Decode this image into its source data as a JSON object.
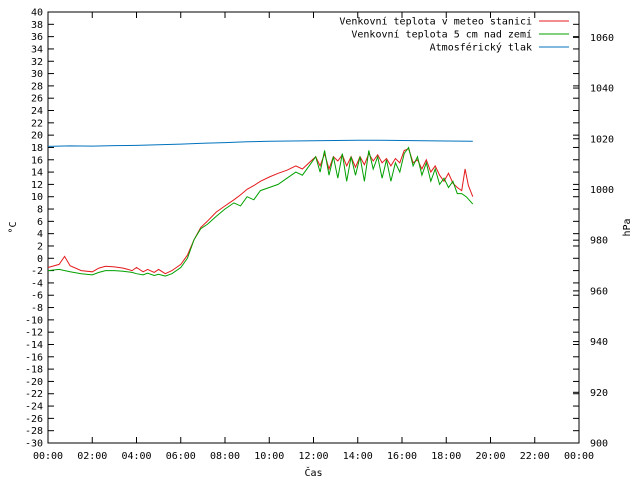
{
  "chart_data": {
    "type": "line",
    "xlabel": "Čas",
    "ylabel": "°C",
    "y2label": "hPa",
    "xlim": [
      0,
      24
    ],
    "ylim": [
      -30,
      40
    ],
    "y2lim": [
      900,
      1070
    ],
    "x_tick_labels": [
      "00:00",
      "02:00",
      "04:00",
      "06:00",
      "08:00",
      "10:00",
      "12:00",
      "14:00",
      "16:00",
      "18:00",
      "20:00",
      "22:00",
      "00:00"
    ],
    "y_ticks": [
      -30,
      -28,
      -26,
      -24,
      -22,
      -20,
      -18,
      -16,
      -14,
      -12,
      -10,
      -8,
      -6,
      -4,
      -2,
      0,
      2,
      4,
      6,
      8,
      10,
      12,
      14,
      16,
      18,
      20,
      22,
      24,
      26,
      28,
      30,
      32,
      34,
      36,
      38,
      40
    ],
    "y2_ticks": [
      900,
      920,
      940,
      960,
      980,
      1000,
      1020,
      1040,
      1060
    ],
    "grid": false,
    "legend_position": "top-right",
    "series": [
      {
        "name": "Venkovní teplota v meteo stanici",
        "axis": "y",
        "color": "#e41a1c",
        "x": [
          0,
          0.5,
          0.75,
          1.0,
          1.5,
          2.0,
          2.3,
          2.6,
          3.0,
          3.4,
          3.8,
          4.0,
          4.3,
          4.5,
          4.8,
          5.0,
          5.3,
          5.6,
          6.0,
          6.3,
          6.6,
          6.9,
          7.2,
          7.6,
          8.0,
          8.4,
          8.7,
          9.0,
          9.3,
          9.6,
          10.0,
          10.4,
          10.8,
          11.2,
          11.5,
          11.8,
          12.1,
          12.3,
          12.5,
          12.7,
          12.9,
          13.1,
          13.3,
          13.5,
          13.7,
          13.9,
          14.1,
          14.3,
          14.5,
          14.7,
          14.9,
          15.1,
          15.3,
          15.5,
          15.7,
          15.9,
          16.1,
          16.3,
          16.5,
          16.7,
          16.9,
          17.1,
          17.3,
          17.5,
          17.7,
          17.9,
          18.1,
          18.3,
          18.5,
          18.7,
          18.85,
          19.0,
          19.2
        ],
        "y": [
          -1.5,
          -1.0,
          0.3,
          -1.2,
          -2.0,
          -2.2,
          -1.6,
          -1.3,
          -1.4,
          -1.6,
          -2.0,
          -1.5,
          -2.2,
          -1.8,
          -2.3,
          -1.8,
          -2.5,
          -2.0,
          -1.0,
          0.5,
          3.0,
          5.0,
          6.0,
          7.5,
          8.5,
          9.5,
          10.3,
          11.2,
          11.8,
          12.5,
          13.2,
          13.8,
          14.3,
          15.0,
          14.5,
          15.5,
          16.5,
          15.0,
          17.0,
          14.5,
          16.5,
          15.8,
          16.8,
          15.0,
          16.5,
          14.8,
          16.5,
          15.2,
          17.0,
          15.8,
          16.8,
          15.5,
          16.2,
          15.0,
          16.2,
          15.5,
          17.5,
          17.8,
          15.5,
          16.0,
          14.5,
          16.0,
          14.0,
          15.0,
          13.5,
          12.5,
          13.8,
          12.2,
          11.5,
          11.0,
          14.5,
          11.8,
          10.0
        ]
      },
      {
        "name": "Venkovní teplota 5 cm nad zemí",
        "axis": "y",
        "color": "#00a000",
        "x": [
          0,
          0.5,
          1.0,
          1.5,
          2.0,
          2.3,
          2.6,
          3.0,
          3.4,
          3.8,
          4.0,
          4.3,
          4.5,
          4.8,
          5.0,
          5.3,
          5.6,
          6.0,
          6.3,
          6.6,
          6.9,
          7.2,
          7.6,
          8.0,
          8.4,
          8.7,
          9.0,
          9.3,
          9.6,
          10.0,
          10.4,
          10.8,
          11.2,
          11.5,
          11.8,
          12.1,
          12.3,
          12.5,
          12.7,
          12.9,
          13.1,
          13.3,
          13.5,
          13.7,
          13.9,
          14.1,
          14.3,
          14.5,
          14.7,
          14.9,
          15.1,
          15.3,
          15.5,
          15.7,
          15.9,
          16.1,
          16.3,
          16.5,
          16.7,
          16.9,
          17.1,
          17.3,
          17.5,
          17.7,
          17.9,
          18.1,
          18.3,
          18.5,
          18.7,
          18.9,
          19.2
        ],
        "y": [
          -2.0,
          -1.8,
          -2.2,
          -2.5,
          -2.7,
          -2.3,
          -2.0,
          -2.0,
          -2.1,
          -2.3,
          -2.5,
          -2.7,
          -2.4,
          -2.8,
          -2.6,
          -2.9,
          -2.5,
          -1.5,
          0.0,
          3.0,
          4.8,
          5.5,
          6.8,
          8.0,
          9.0,
          8.5,
          10.0,
          9.5,
          11.0,
          11.5,
          12.0,
          13.0,
          14.0,
          13.5,
          15.0,
          16.5,
          14.0,
          17.5,
          13.5,
          16.5,
          13.0,
          17.0,
          12.5,
          16.5,
          13.5,
          16.5,
          12.5,
          17.5,
          14.5,
          16.5,
          13.0,
          16.0,
          12.5,
          15.5,
          14.0,
          17.0,
          18.0,
          15.0,
          16.5,
          13.5,
          15.5,
          12.5,
          14.5,
          12.0,
          13.0,
          11.5,
          12.5,
          10.5,
          10.5,
          10.0,
          8.8
        ]
      },
      {
        "name": "Atmosférický tlak",
        "axis": "y2",
        "color": "#0072bd",
        "x": [
          0,
          1,
          2,
          3,
          4,
          5,
          6,
          7,
          8,
          9,
          10,
          11,
          12,
          13,
          14,
          15,
          16,
          17,
          18,
          19.2
        ],
        "y": [
          1017.0,
          1017.2,
          1017.1,
          1017.3,
          1017.4,
          1017.6,
          1017.9,
          1018.2,
          1018.5,
          1018.8,
          1019.0,
          1019.1,
          1019.2,
          1019.3,
          1019.4,
          1019.4,
          1019.3,
          1019.2,
          1019.1,
          1019.0
        ]
      }
    ]
  }
}
